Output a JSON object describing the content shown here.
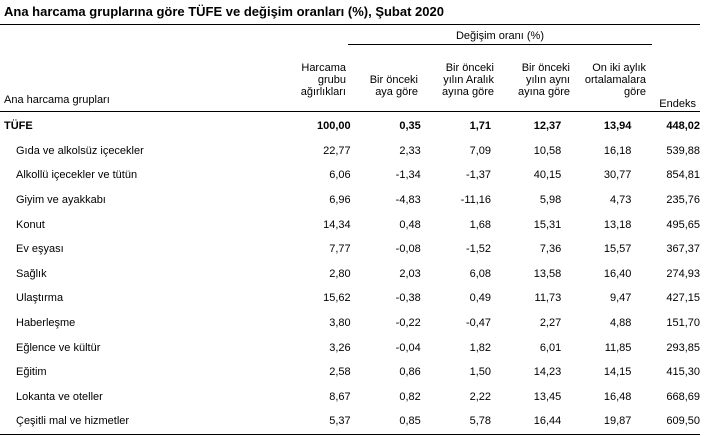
{
  "title": "Ana harcama gruplarına göre TÜFE ve değişim oranları (%), Şubat 2020",
  "change_group_label": "Değişim oranı (%)",
  "row_header": "Ana harcama grupları",
  "columns": [
    [
      "Harcama",
      "grubu",
      "ağırlıkları"
    ],
    [
      "Bir önceki",
      "aya göre"
    ],
    [
      "Bir önceki",
      "yılın Aralık",
      "ayına göre"
    ],
    [
      "Bir önceki",
      "yılın aynı",
      "ayına göre"
    ],
    [
      "On iki aylık",
      "ortalamalara",
      "göre"
    ],
    [
      "Endeks"
    ]
  ],
  "rows": [
    {
      "name": "TÜFE",
      "values": [
        "100,00",
        "0,35",
        "1,71",
        "12,37",
        "13,94",
        "448,02"
      ]
    },
    {
      "name": "Gıda ve alkolsüz içecekler",
      "values": [
        "22,77",
        "2,33",
        "7,09",
        "10,58",
        "16,18",
        "539,88"
      ]
    },
    {
      "name": "Alkollü içecekler ve tütün",
      "values": [
        "6,06",
        "-1,34",
        "-1,37",
        "40,15",
        "30,77",
        "854,81"
      ]
    },
    {
      "name": "Giyim ve ayakkabı",
      "values": [
        "6,96",
        "-4,83",
        "-11,16",
        "5,98",
        "4,73",
        "235,76"
      ]
    },
    {
      "name": "Konut",
      "values": [
        "14,34",
        "0,48",
        "1,68",
        "15,31",
        "13,18",
        "495,65"
      ]
    },
    {
      "name": "Ev eşyası",
      "values": [
        "7,77",
        "-0,08",
        "-1,52",
        "7,36",
        "15,57",
        "367,37"
      ]
    },
    {
      "name": "Sağlık",
      "values": [
        "2,80",
        "2,03",
        "6,08",
        "13,58",
        "16,40",
        "274,93"
      ]
    },
    {
      "name": "Ulaştırma",
      "values": [
        "15,62",
        "-0,38",
        "0,49",
        "11,73",
        "9,47",
        "427,15"
      ]
    },
    {
      "name": "Haberleşme",
      "values": [
        "3,80",
        "-0,22",
        "-0,47",
        "2,27",
        "4,88",
        "151,70"
      ]
    },
    {
      "name": "Eğlence ve kültür",
      "values": [
        "3,26",
        "-0,04",
        "1,82",
        "6,01",
        "11,85",
        "293,85"
      ]
    },
    {
      "name": "Eğitim",
      "values": [
        "2,58",
        "0,86",
        "1,50",
        "14,23",
        "14,15",
        "415,30"
      ]
    },
    {
      "name": "Lokanta ve oteller",
      "values": [
        "8,67",
        "0,82",
        "2,22",
        "13,45",
        "16,48",
        "668,69"
      ]
    },
    {
      "name": "Çeşitli mal ve hizmetler",
      "values": [
        "5,37",
        "0,85",
        "5,78",
        "16,44",
        "19,87",
        "609,50"
      ]
    }
  ]
}
